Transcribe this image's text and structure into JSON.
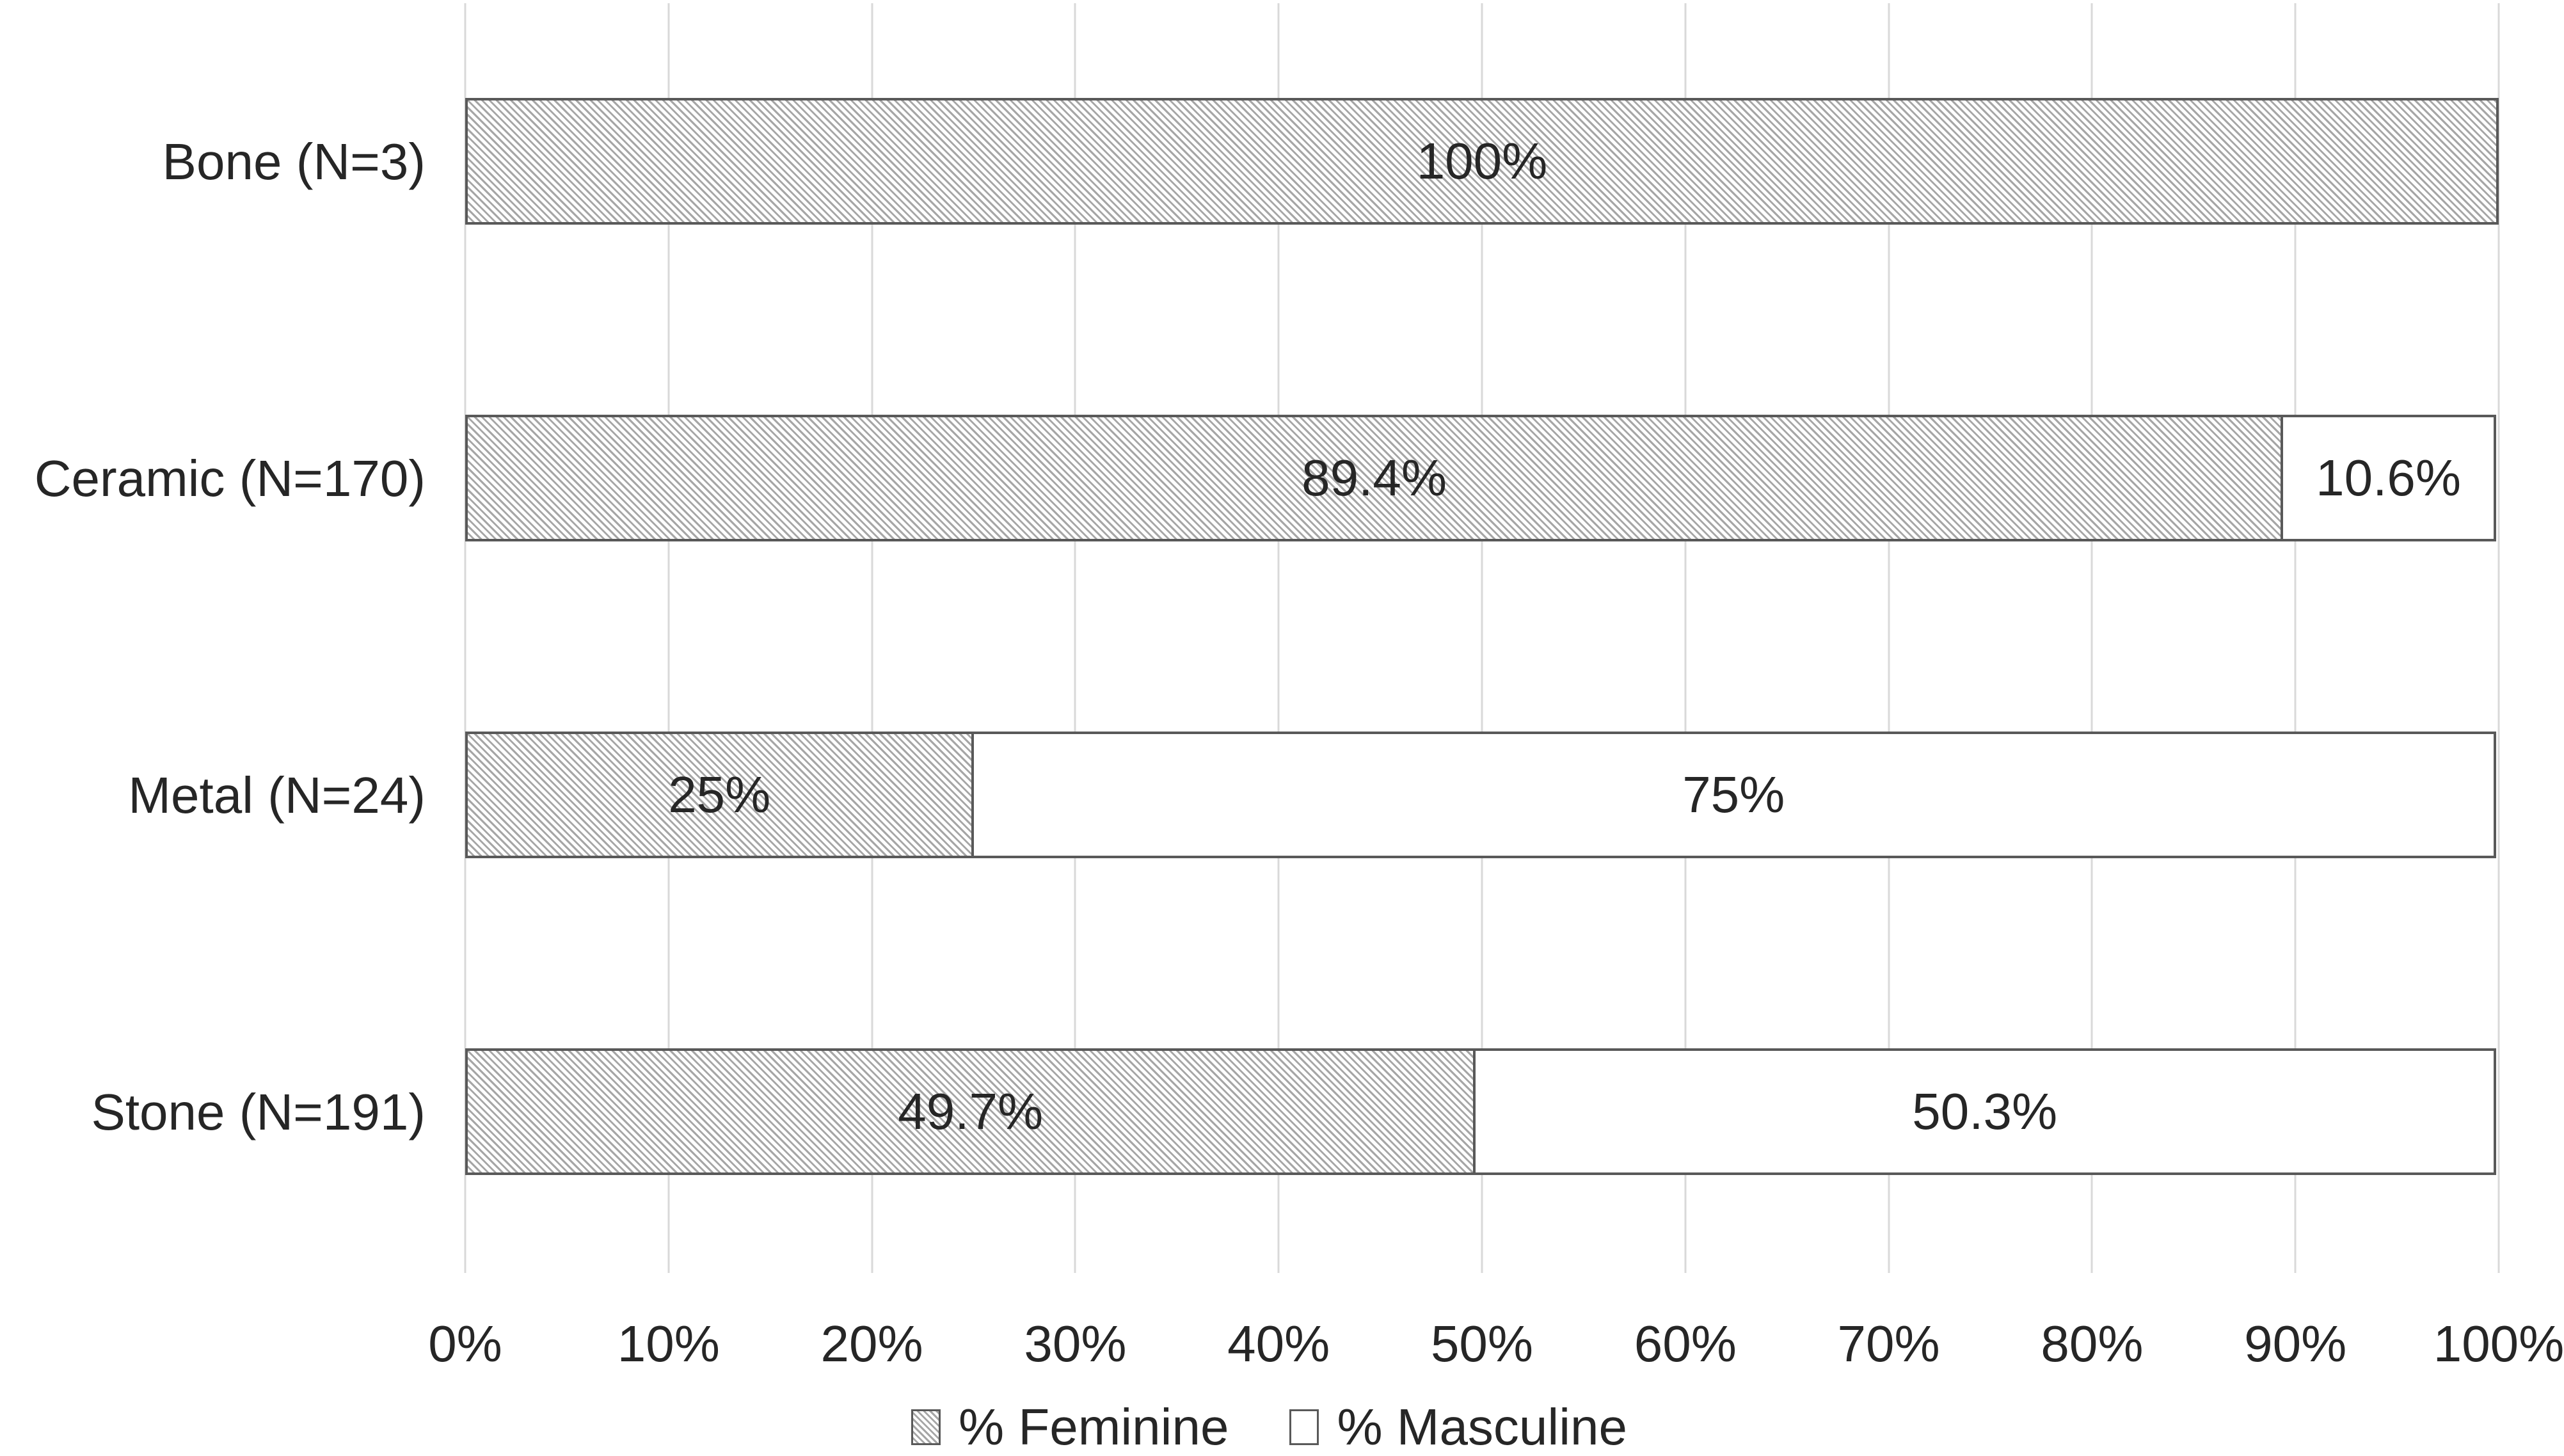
{
  "chart_data": {
    "type": "bar",
    "orientation": "horizontal-stacked",
    "title": "",
    "xlabel": "",
    "ylabel": "",
    "xlim": [
      0,
      100
    ],
    "grid": "vertical",
    "legend_position": "bottom-center",
    "categories": [
      "Bone (N=3)",
      "Ceramic (N=170)",
      "Metal (N=24)",
      "Stone (N=191)"
    ],
    "series": [
      {
        "name": "% Feminine",
        "values": [
          100,
          89.4,
          25,
          49.7
        ]
      },
      {
        "name": "% Masculine",
        "values": [
          0,
          10.6,
          75,
          50.3
        ]
      }
    ],
    "rows": [
      {
        "category": "Bone (N=3)",
        "feminine": {
          "pct": 100,
          "label": "100%"
        },
        "masculine": {
          "pct": 0,
          "label": ""
        }
      },
      {
        "category": "Ceramic (N=170)",
        "feminine": {
          "pct": 89.4,
          "label": "89.4%"
        },
        "masculine": {
          "pct": 10.6,
          "label": "10.6%"
        }
      },
      {
        "category": "Metal (N=24)",
        "feminine": {
          "pct": 25,
          "label": "25%"
        },
        "masculine": {
          "pct": 75,
          "label": "75%"
        }
      },
      {
        "category": "Stone (N=191)",
        "feminine": {
          "pct": 49.7,
          "label": "49.7%"
        },
        "masculine": {
          "pct": 50.3,
          "label": "50.3%"
        }
      }
    ],
    "x_ticks": [
      "0%",
      "10%",
      "20%",
      "30%",
      "40%",
      "50%",
      "60%",
      "70%",
      "80%",
      "90%",
      "100%"
    ],
    "legend": {
      "items": [
        {
          "label": "% Feminine",
          "swatch": "gray-diagonal-hatch"
        },
        {
          "label": "% Masculine",
          "swatch": "white"
        }
      ]
    },
    "colors": {
      "hatch_line": "#a6a6a6",
      "bar_border": "#595959",
      "gridline": "#d9d9d9",
      "text": "#262626",
      "background": "#ffffff"
    }
  }
}
